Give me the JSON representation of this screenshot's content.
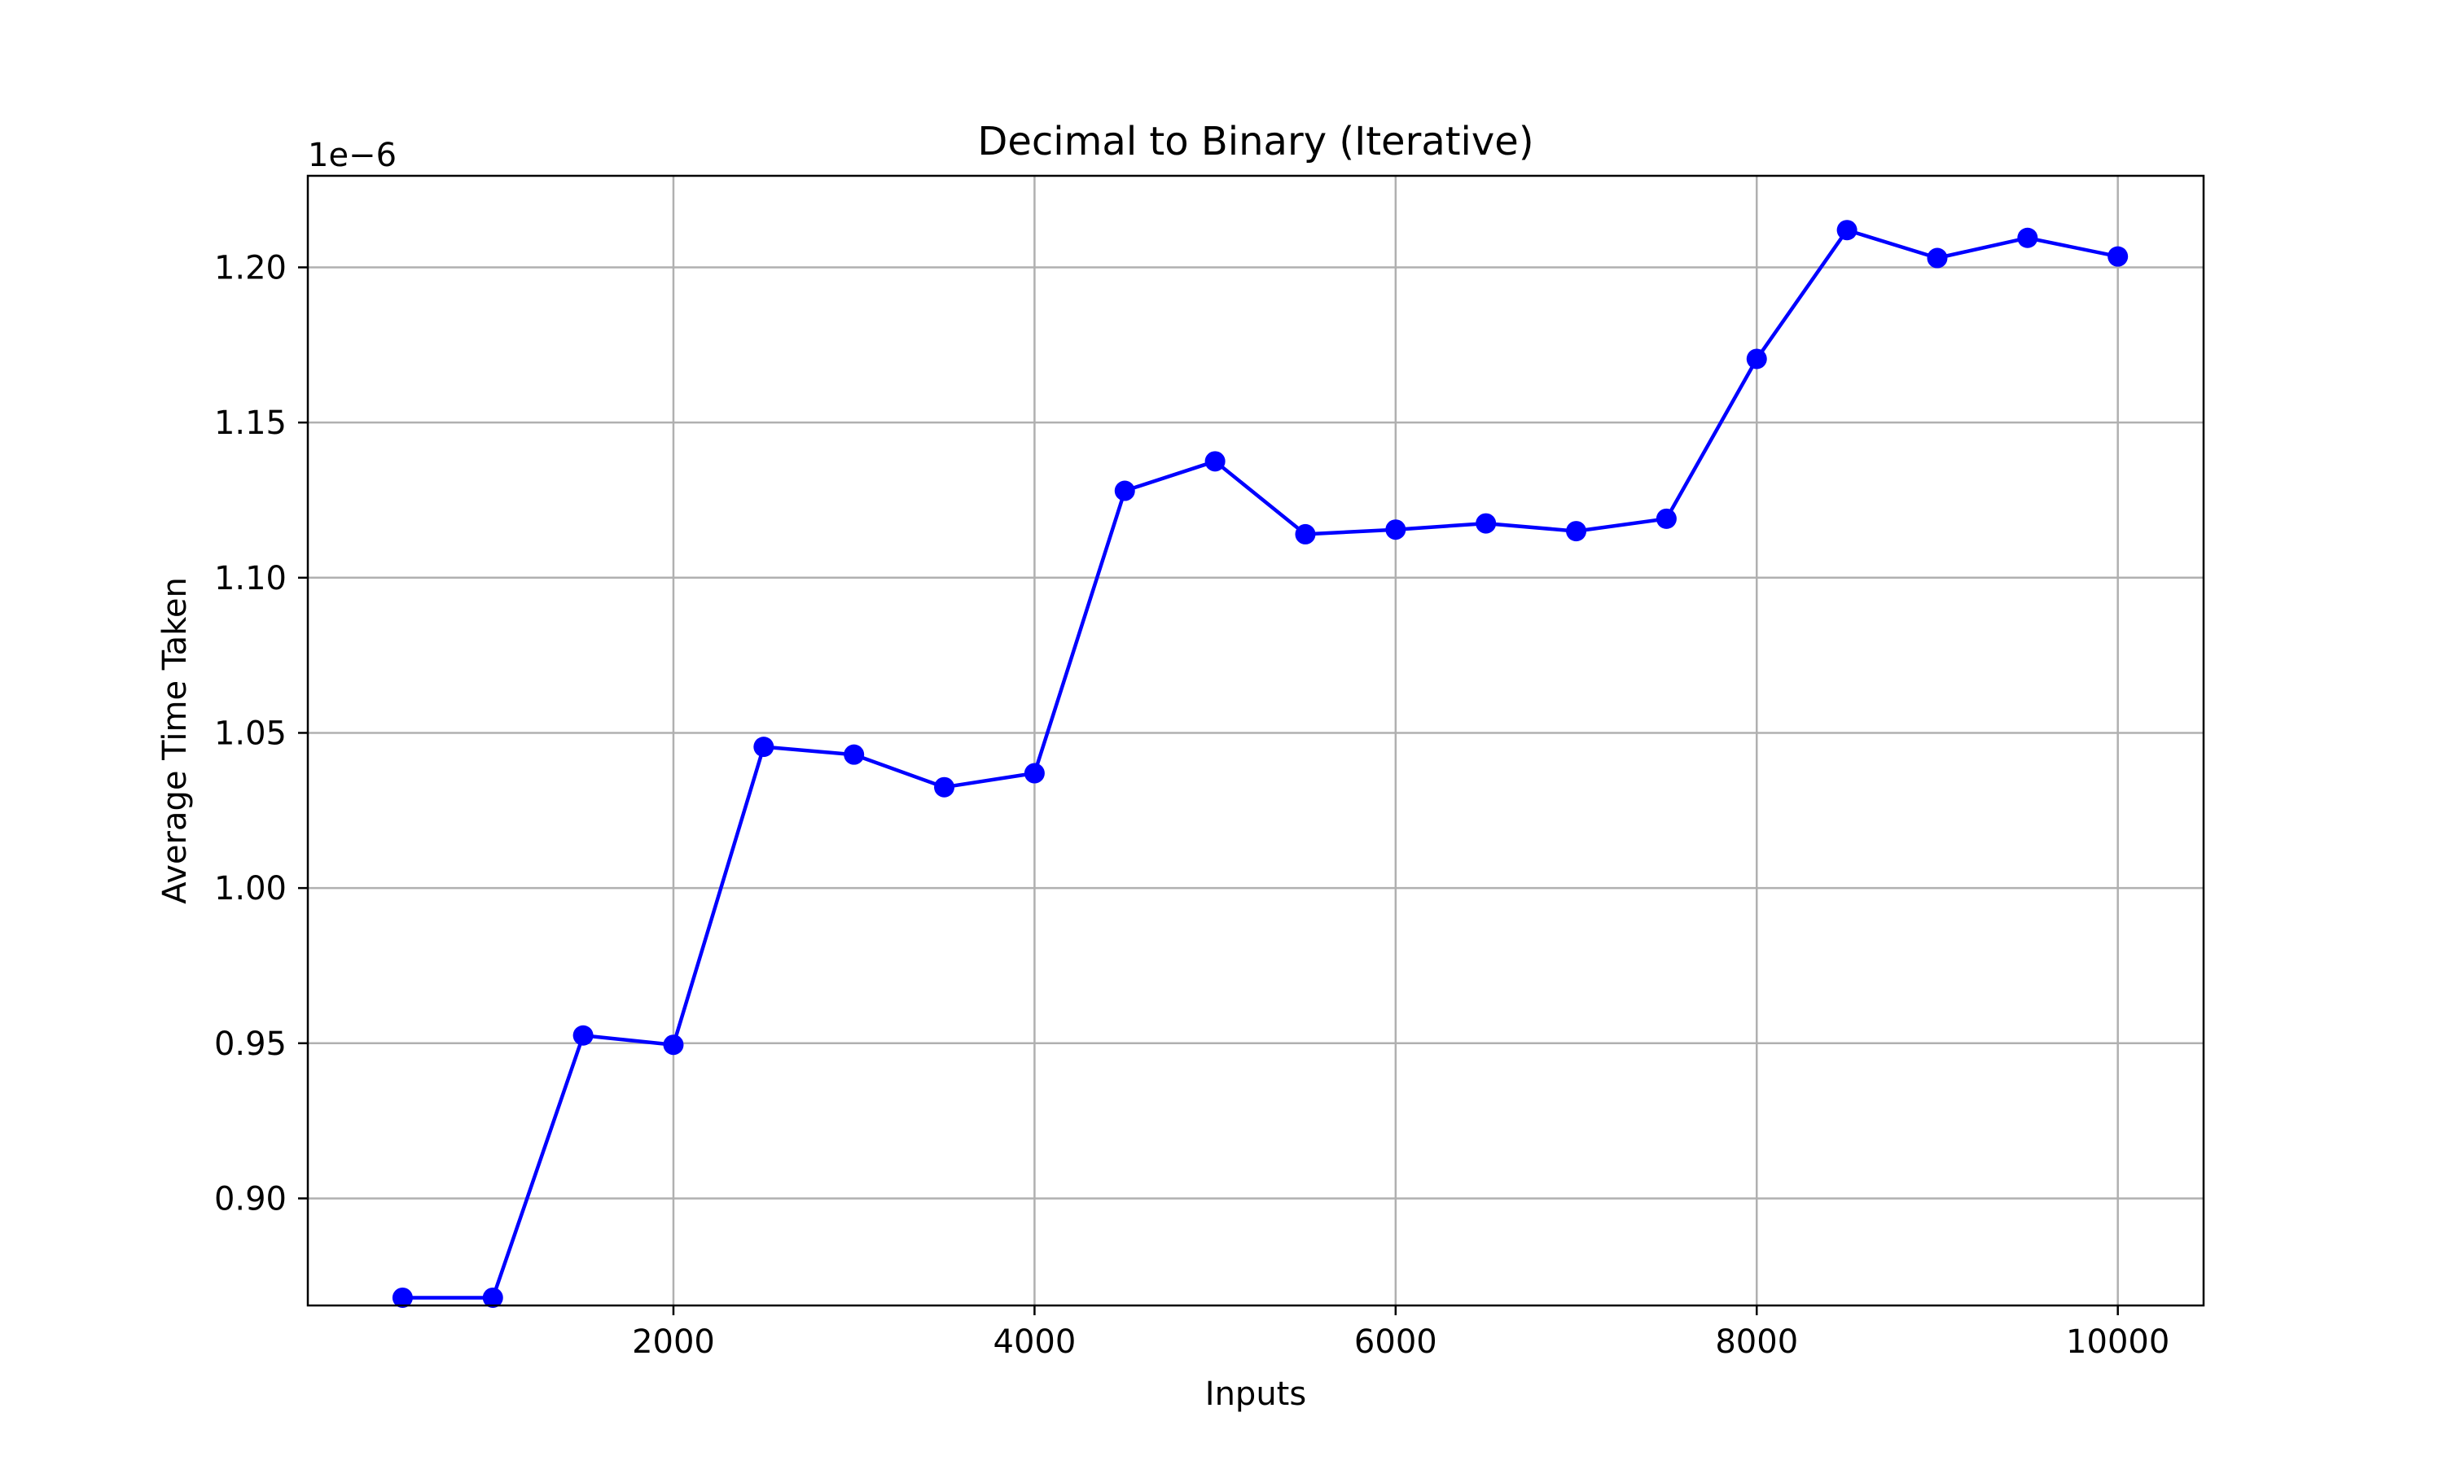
{
  "chart_data": {
    "type": "line",
    "title": "Decimal to Binary (Iterative)",
    "xlabel": "Inputs",
    "ylabel": "Average Time Taken",
    "y_offset_label": "1e−6",
    "xlim": [
      -25,
      10475
    ],
    "ylim": [
      0.8655,
      1.2295
    ],
    "x_ticks": [
      2000,
      4000,
      6000,
      8000,
      10000
    ],
    "x_tick_labels": [
      "2000",
      "4000",
      "6000",
      "8000",
      "10000"
    ],
    "y_ticks": [
      0.9,
      0.95,
      1.0,
      1.05,
      1.1,
      1.15,
      1.2
    ],
    "y_tick_labels": [
      "0.90",
      "0.95",
      "1.00",
      "1.05",
      "1.10",
      "1.15",
      "1.20"
    ],
    "grid": true,
    "legend": "none",
    "series": [
      {
        "color": "#0000ff",
        "marker": "circle",
        "x": [
          500,
          1000,
          1500,
          2000,
          2500,
          3000,
          3500,
          4000,
          4500,
          5000,
          5500,
          6000,
          6500,
          7000,
          7500,
          8000,
          8500,
          9000,
          9500,
          10000
        ],
        "y": [
          0.868,
          0.868,
          0.9525,
          0.9495,
          1.0455,
          1.043,
          1.0325,
          1.037,
          1.128,
          1.1375,
          1.114,
          1.1155,
          1.1175,
          1.115,
          1.119,
          1.1705,
          1.212,
          1.203,
          1.2095,
          1.2035
        ]
      }
    ],
    "colors": {
      "line": "#0000ff",
      "grid": "#b0b0b0",
      "axes": "#000000",
      "background": "#ffffff"
    }
  }
}
